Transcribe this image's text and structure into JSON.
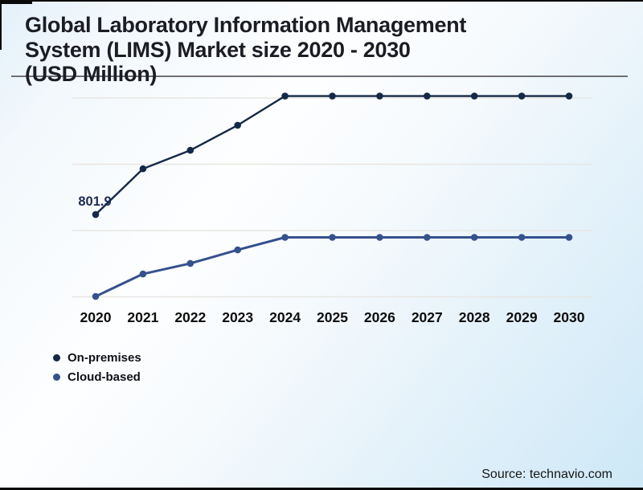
{
  "header": {
    "title_lines": [
      "Global Laboratory Information Management",
      "System (LIMS) Market size 2020 - 2030",
      "(USD Million)"
    ],
    "title_full": "Global Laboratory Information Management System (LIMS) Market size 2020 - 2030 (USD Million)"
  },
  "chart_data": {
    "type": "line",
    "title": "Global Laboratory Information Management System (LIMS) Market size 2020 - 2030 (USD Million)",
    "categories": [
      "2020",
      "2021",
      "2022",
      "2023",
      "2024",
      "2025",
      "2026",
      "2027",
      "2028",
      "2029",
      "2030"
    ],
    "y_axis_labels_visible": false,
    "gridline_count": 4,
    "legend_position": "bottom-left",
    "series": [
      {
        "name": "On-premises",
        "color": "#142947",
        "values_pct_of_plot_height": [
          41.4,
          64.4,
          73.7,
          86.3,
          101,
          101,
          101,
          101,
          101,
          101,
          101
        ],
        "data_labels": [
          {
            "category": "2020",
            "text": "801.9",
            "value": 801.9
          }
        ]
      },
      {
        "name": "Cloud-based",
        "color": "#35518e",
        "values_pct_of_plot_height": [
          0.2,
          11.5,
          16.8,
          23.6,
          29.9,
          29.9,
          29.9,
          29.9,
          29.9,
          29.9,
          29.9
        ],
        "data_labels": []
      }
    ]
  },
  "legend": {
    "items": [
      {
        "label": "On-premises",
        "color": "#142947"
      },
      {
        "label": "Cloud-based",
        "color": "#35518e"
      }
    ]
  },
  "footer": {
    "source_text": "Source: technavio.com"
  },
  "colors": {
    "gridline": "#e8e6e2",
    "x_label": "#0d0d0d",
    "data_label": "#1c2b50",
    "separator": "#6f6f76"
  }
}
